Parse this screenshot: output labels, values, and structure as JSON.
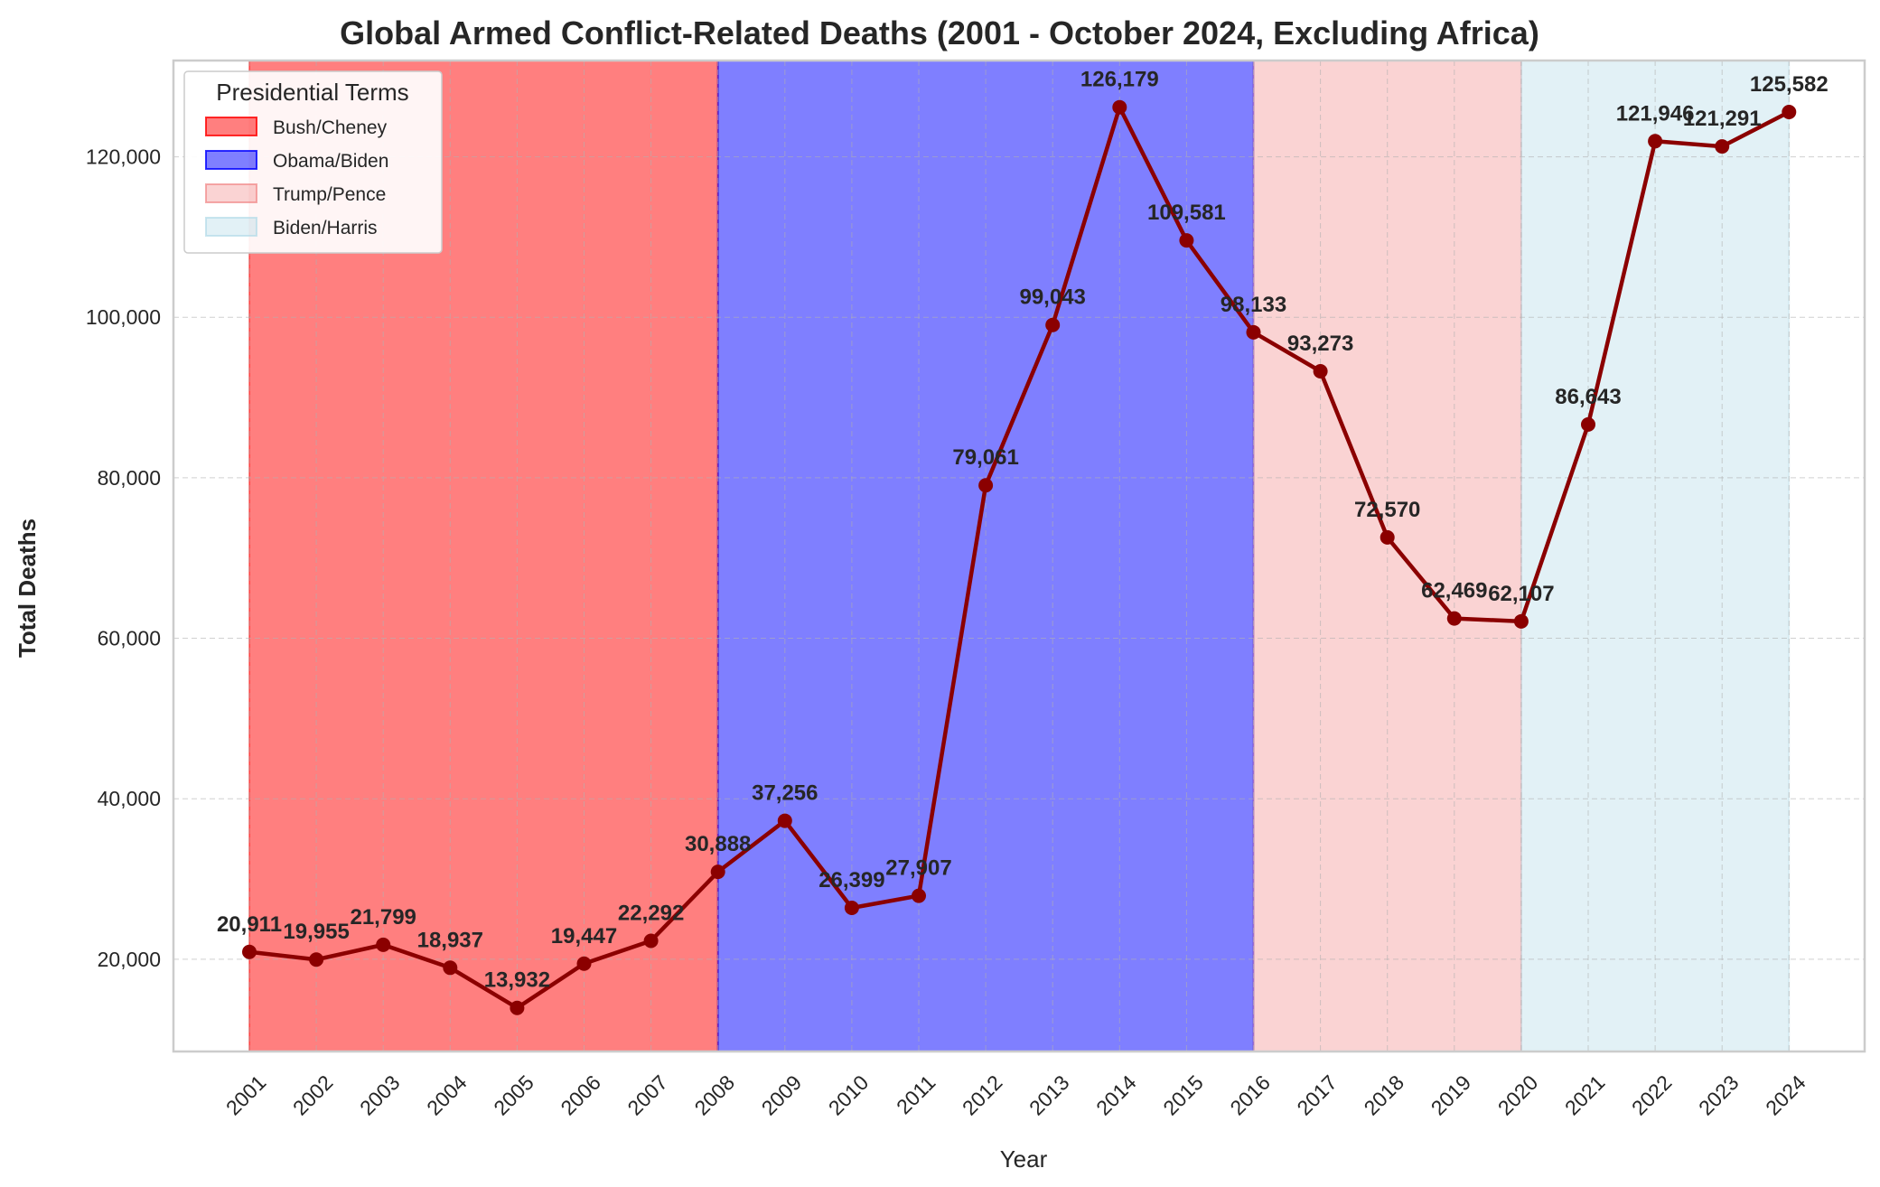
{
  "chart_data": {
    "type": "line",
    "title": "Global Armed Conflict-Related Deaths (2001 - October 2024, Excluding Africa)",
    "xlabel": "Year",
    "ylabel": "Total Deaths",
    "categories": [
      "2001",
      "2002",
      "2003",
      "2004",
      "2005",
      "2006",
      "2007",
      "2008",
      "2009",
      "2010",
      "2011",
      "2012",
      "2013",
      "2014",
      "2015",
      "2016",
      "2017",
      "2018",
      "2019",
      "2020",
      "2021",
      "2022",
      "2023",
      "2024"
    ],
    "series": [
      {
        "values": [
          20911,
          19955,
          21799,
          18937,
          13932,
          19447,
          22292,
          30888,
          37256,
          26399,
          27907,
          79061,
          99043,
          126179,
          109581,
          98133,
          93273,
          72570,
          62469,
          62107,
          86643,
          121946,
          121291,
          125582
        ],
        "labels": [
          "20,911",
          "19,955",
          "21,799",
          "18,937",
          "13,932",
          "19,447",
          "22,292",
          "30,888",
          "37,256",
          "26,399",
          "27,907",
          "79,061",
          "99,043",
          "126,179",
          "109,581",
          "98,133",
          "93,273",
          "72,570",
          "62,469",
          "62,107",
          "86,643",
          "121,946",
          "121,291",
          "125,582"
        ],
        "color": "#8b0000"
      }
    ],
    "ylim": [
      8500,
      132000
    ],
    "yticks": [
      20000,
      40000,
      60000,
      80000,
      100000,
      120000
    ],
    "ytick_labels": [
      "20,000",
      "40,000",
      "60,000",
      "80,000",
      "100,000",
      "120,000"
    ],
    "grid": true,
    "legend": {
      "title": "Presidential Terms",
      "placement": "top-left",
      "entries": [
        {
          "label": "Bush/Cheney",
          "color": "#ff0000",
          "opacity": 0.5
        },
        {
          "label": "Obama/Biden",
          "color": "#0000ff",
          "opacity": 0.5
        },
        {
          "label": "Trump/Pence",
          "color": "#f08080",
          "opacity": 0.35
        },
        {
          "label": "Biden/Harris",
          "color": "#add8e6",
          "opacity": 0.35
        }
      ]
    },
    "shaded_regions": [
      {
        "label": "Bush/Cheney",
        "start": "2001",
        "end": "2008"
      },
      {
        "label": "Obama/Biden",
        "start": "2008",
        "end": "2016"
      },
      {
        "label": "Trump/Pence",
        "start": "2016",
        "end": "2020"
      },
      {
        "label": "Biden/Harris",
        "start": "2020",
        "end": "2024"
      }
    ]
  }
}
